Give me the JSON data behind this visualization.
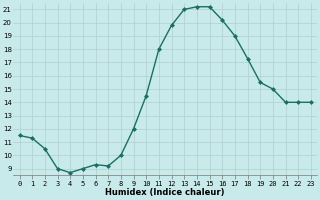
{
  "x": [
    0,
    1,
    2,
    3,
    4,
    5,
    6,
    7,
    8,
    9,
    10,
    11,
    12,
    13,
    14,
    15,
    16,
    17,
    18,
    19,
    20,
    21,
    22,
    23
  ],
  "y": [
    11.5,
    11.3,
    10.5,
    9.0,
    8.7,
    9.0,
    9.3,
    9.2,
    10.0,
    12.0,
    14.5,
    18.0,
    19.8,
    21.0,
    21.2,
    21.2,
    20.2,
    19.0,
    17.3,
    15.5,
    15.0,
    14.0,
    14.0,
    14.0
  ],
  "line_color": "#1a7060",
  "marker": "D",
  "marker_size": 2.0,
  "bg_color": "#c8eaea",
  "grid_color": "#b0d0d0",
  "xlabel": "Humidex (Indice chaleur)",
  "ylim_min": 8.5,
  "ylim_max": 21.5,
  "xlim_min": -0.5,
  "xlim_max": 23.5,
  "yticks": [
    9,
    10,
    11,
    12,
    13,
    14,
    15,
    16,
    17,
    18,
    19,
    20,
    21
  ],
  "xticks": [
    0,
    1,
    2,
    3,
    4,
    5,
    6,
    7,
    8,
    9,
    10,
    11,
    12,
    13,
    14,
    15,
    16,
    17,
    18,
    19,
    20,
    21,
    22,
    23
  ],
  "tick_fontsize": 5.0,
  "xlabel_fontsize": 6.0,
  "linewidth": 1.0
}
